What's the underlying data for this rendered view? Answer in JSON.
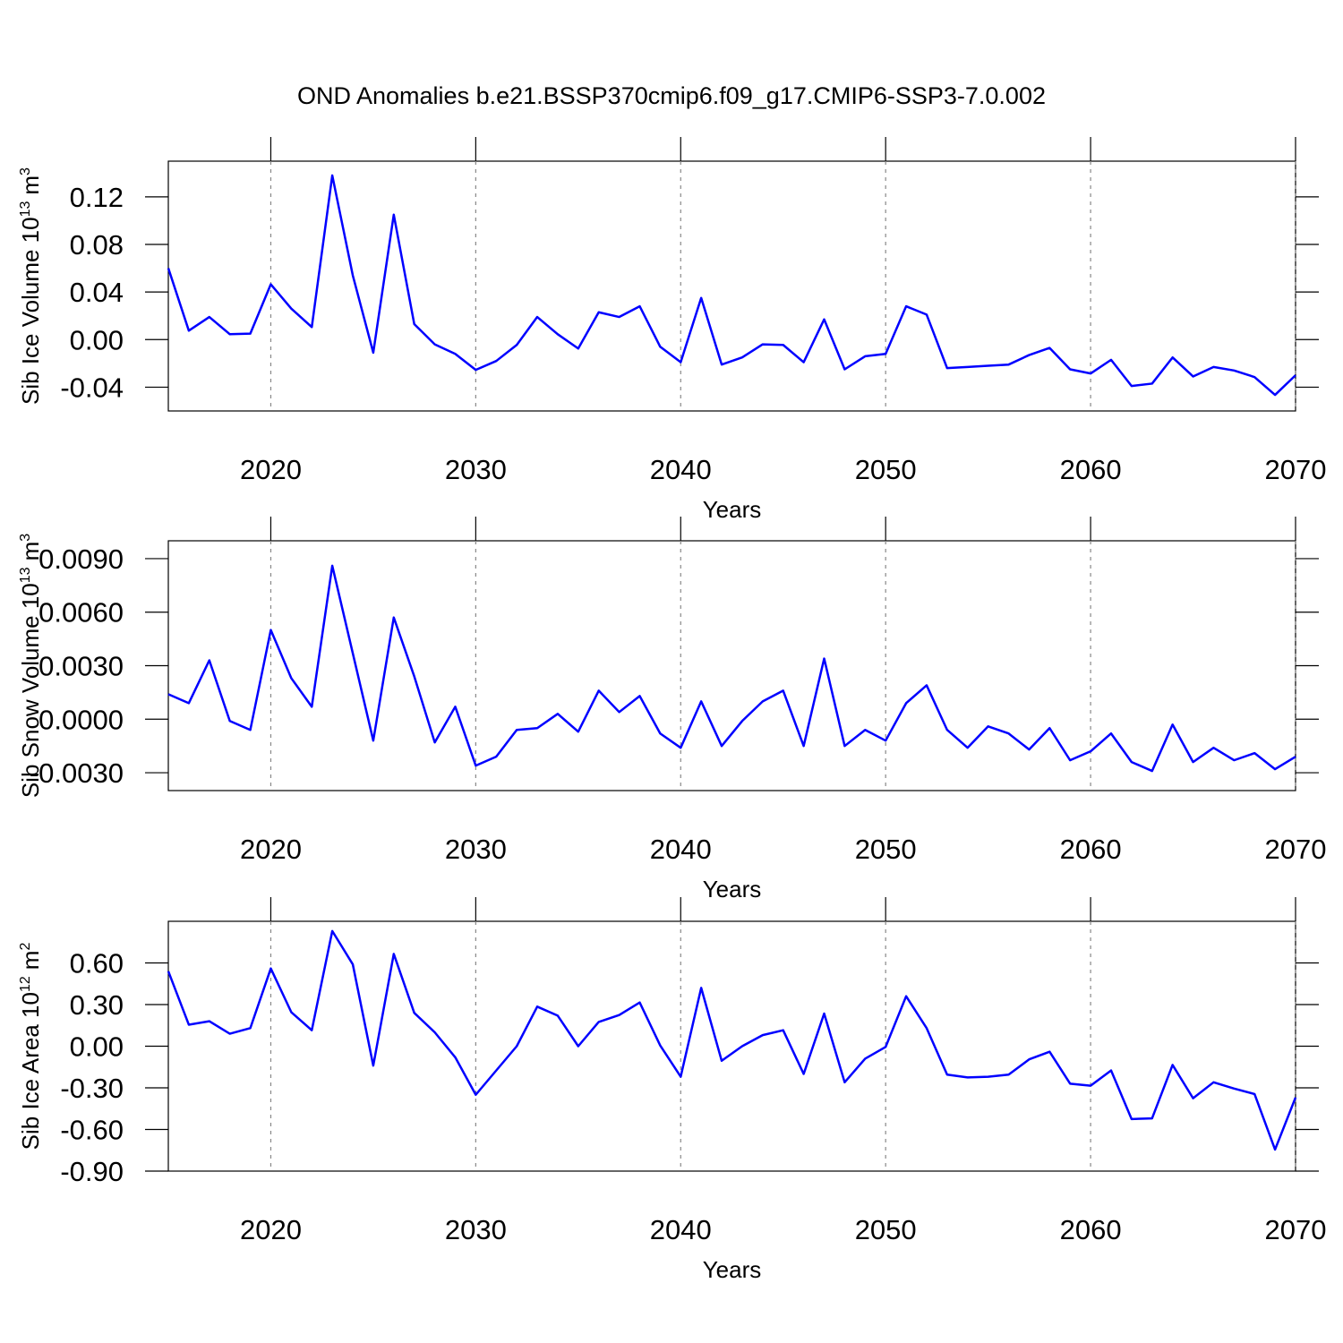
{
  "title": "OND Anomalies b.e21.BSSP370cmip6.f09_g17.CMIP6-SSP3-7.0.002",
  "chart_data": [
    {
      "type": "line",
      "ylabel": [
        "Sib Ice Volume 10",
        "13",
        "m",
        "3"
      ],
      "xlabel": "Years",
      "color": "#0000ff",
      "grid": true,
      "xlim": [
        2015,
        2070
      ],
      "xticks": [
        2020,
        2030,
        2040,
        2050,
        2060,
        2070
      ],
      "ylim": [
        -0.06,
        0.15
      ],
      "yticks": [
        {
          "value": 0.12,
          "label": "0.12"
        },
        {
          "value": 0.08,
          "label": "0.08"
        },
        {
          "value": 0.04,
          "label": "0.04"
        },
        {
          "value": 0,
          "label": "0.00"
        },
        {
          "value": -0.04,
          "label": "-0.04"
        }
      ],
      "x": [
        2015,
        2016,
        2017,
        2018,
        2019,
        2020,
        2021,
        2022,
        2023,
        2024,
        2025,
        2026,
        2027,
        2028,
        2029,
        2030,
        2031,
        2032,
        2033,
        2034,
        2035,
        2036,
        2037,
        2038,
        2039,
        2040,
        2041,
        2042,
        2043,
        2044,
        2045,
        2046,
        2047,
        2048,
        2049,
        2050,
        2051,
        2052,
        2053,
        2054,
        2055,
        2056,
        2057,
        2058,
        2059,
        2060,
        2061,
        2062,
        2063,
        2064,
        2065,
        2066,
        2067,
        2068,
        2069,
        2070
      ],
      "values": [
        0.06,
        0.0075,
        0.019,
        0.0045,
        0.005,
        0.0465,
        0.026,
        0.0105,
        0.138,
        0.054,
        -0.011,
        0.105,
        0.013,
        -0.004,
        -0.012,
        -0.0255,
        -0.018,
        -0.0045,
        0.019,
        0.0045,
        -0.0075,
        0.023,
        0.019,
        0.028,
        -0.006,
        -0.019,
        0.035,
        -0.021,
        -0.015,
        -0.004,
        -0.0045,
        -0.019,
        0.017,
        -0.025,
        -0.014,
        -0.012,
        0.028,
        0.021,
        -0.024,
        -0.023,
        -0.022,
        -0.021,
        -0.013,
        -0.007,
        -0.025,
        -0.0285,
        -0.017,
        -0.039,
        -0.037,
        -0.015,
        -0.031,
        -0.023,
        -0.026,
        -0.0315,
        -0.0465,
        -0.03
      ]
    },
    {
      "type": "line",
      "ylabel": [
        "Sib Snow Volume 10",
        "13",
        "m",
        "3"
      ],
      "xlabel": "Years",
      "color": "#0000ff",
      "grid": true,
      "xlim": [
        2015,
        2070
      ],
      "xticks": [
        2020,
        2030,
        2040,
        2050,
        2060,
        2070
      ],
      "ylim": [
        -0.004,
        0.01
      ],
      "yticks": [
        {
          "value": 0.009,
          "label": "0.0090"
        },
        {
          "value": 0.006,
          "label": "0.0060"
        },
        {
          "value": 0.003,
          "label": "0.0030"
        },
        {
          "value": 0,
          "label": "0.0000"
        },
        {
          "value": -0.003,
          "label": "-0.0030"
        }
      ],
      "x": [
        2015,
        2016,
        2017,
        2018,
        2019,
        2020,
        2021,
        2022,
        2023,
        2024,
        2025,
        2026,
        2027,
        2028,
        2029,
        2030,
        2031,
        2032,
        2033,
        2034,
        2035,
        2036,
        2037,
        2038,
        2039,
        2040,
        2041,
        2042,
        2043,
        2044,
        2045,
        2046,
        2047,
        2048,
        2049,
        2050,
        2051,
        2052,
        2053,
        2054,
        2055,
        2056,
        2057,
        2058,
        2059,
        2060,
        2061,
        2062,
        2063,
        2064,
        2065,
        2066,
        2067,
        2068,
        2069,
        2070
      ],
      "values": [
        0.0014,
        0.0009,
        0.0033,
        -0.0001,
        -0.0006,
        0.005,
        0.0023,
        0.0007,
        0.0086,
        0.0037,
        -0.0012,
        0.0057,
        0.0024,
        -0.0013,
        0.0007,
        -0.0026,
        -0.0021,
        -0.0006,
        -0.0005,
        0.0003,
        -0.0007,
        0.0016,
        0.0004,
        0.0013,
        -0.0008,
        -0.0016,
        0.001,
        -0.0015,
        -0.0001,
        0.001,
        0.0016,
        -0.0015,
        0.0034,
        -0.0015,
        -0.0006,
        -0.0012,
        0.0009,
        0.0019,
        -0.0006,
        -0.0016,
        -0.0004,
        -0.0008,
        -0.0017,
        -0.0005,
        -0.0023,
        -0.0018,
        -0.0008,
        -0.0024,
        -0.0029,
        -0.0003,
        -0.0024,
        -0.0016,
        -0.0023,
        -0.0019,
        -0.0028,
        -0.0021
      ]
    },
    {
      "type": "line",
      "ylabel": [
        "Sib Ice Area 10",
        "12",
        "m",
        "2"
      ],
      "xlabel": "Years",
      "color": "#0000ff",
      "grid": true,
      "xlim": [
        2015,
        2070
      ],
      "xticks": [
        2020,
        2030,
        2040,
        2050,
        2060,
        2070
      ],
      "ylim": [
        -0.9,
        0.9
      ],
      "yticks": [
        {
          "value": 0.6,
          "label": "0.60"
        },
        {
          "value": 0.3,
          "label": "0.30"
        },
        {
          "value": 0,
          "label": "0.00"
        },
        {
          "value": -0.3,
          "label": "-0.30"
        },
        {
          "value": -0.6,
          "label": "-0.60"
        },
        {
          "value": -0.9,
          "label": "-0.90"
        }
      ],
      "x": [
        2015,
        2016,
        2017,
        2018,
        2019,
        2020,
        2021,
        2022,
        2023,
        2024,
        2025,
        2026,
        2027,
        2028,
        2029,
        2030,
        2031,
        2032,
        2033,
        2034,
        2035,
        2036,
        2037,
        2038,
        2039,
        2040,
        2041,
        2042,
        2043,
        2044,
        2045,
        2046,
        2047,
        2048,
        2049,
        2050,
        2051,
        2052,
        2053,
        2054,
        2055,
        2056,
        2057,
        2058,
        2059,
        2060,
        2061,
        2062,
        2063,
        2064,
        2065,
        2066,
        2067,
        2068,
        2069,
        2070
      ],
      "values": [
        0.54,
        0.155,
        0.18,
        0.09,
        0.13,
        0.56,
        0.245,
        0.115,
        0.83,
        0.59,
        -0.14,
        0.665,
        0.24,
        0.1,
        -0.08,
        -0.35,
        -0.175,
        0.0,
        0.285,
        0.22,
        0.0,
        0.175,
        0.225,
        0.315,
        0.005,
        -0.22,
        0.42,
        -0.105,
        0.0,
        0.08,
        0.115,
        -0.2,
        0.235,
        -0.26,
        -0.09,
        -0.005,
        0.36,
        0.13,
        -0.205,
        -0.225,
        -0.22,
        -0.205,
        -0.095,
        -0.04,
        -0.27,
        -0.285,
        -0.175,
        -0.525,
        -0.52,
        -0.135,
        -0.375,
        -0.26,
        -0.305,
        -0.345,
        -0.745,
        -0.37
      ]
    }
  ]
}
